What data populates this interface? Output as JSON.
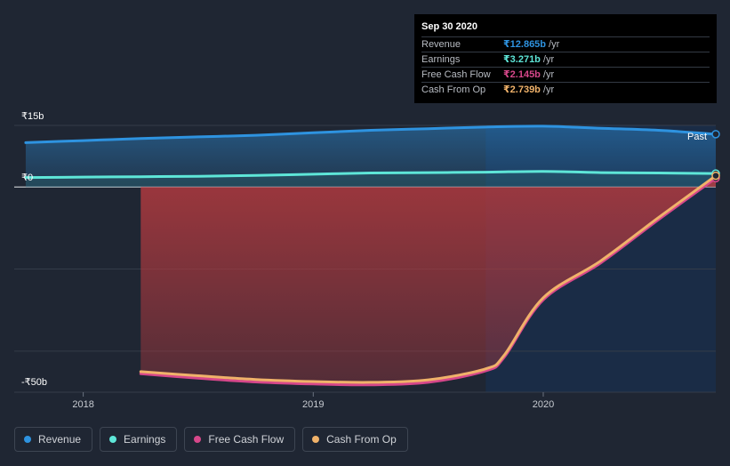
{
  "tooltip": {
    "date": "Sep 30 2020",
    "rows": [
      {
        "label": "Revenue",
        "value": "₹12.865b",
        "unit": "/yr",
        "color": "#2e93e0"
      },
      {
        "label": "Earnings",
        "value": "₹3.271b",
        "unit": "/yr",
        "color": "#5ee6d8"
      },
      {
        "label": "Free Cash Flow",
        "value": "₹2.145b",
        "unit": "/yr",
        "color": "#d6478a"
      },
      {
        "label": "Cash From Op",
        "value": "₹2.739b",
        "unit": "/yr",
        "color": "#f0b26a"
      }
    ]
  },
  "past_label": "Past",
  "legend": [
    {
      "label": "Revenue",
      "color": "#2e93e0"
    },
    {
      "label": "Earnings",
      "color": "#5ee6d8"
    },
    {
      "label": "Free Cash Flow",
      "color": "#d6478a"
    },
    {
      "label": "Cash From Op",
      "color": "#f0b26a"
    }
  ],
  "chart_data": {
    "type": "line",
    "ylim": [
      -50,
      15
    ],
    "xlim": [
      2017.7,
      2020.75
    ],
    "y_ticks": [
      {
        "value": 15,
        "label": "₹15b"
      },
      {
        "value": 0,
        "label": "₹0"
      },
      {
        "value": -50,
        "label": "-₹50b"
      }
    ],
    "x_ticks": [
      {
        "value": 2018,
        "label": "2018"
      },
      {
        "value": 2019,
        "label": "2019"
      },
      {
        "value": 2020,
        "label": "2020"
      }
    ],
    "highlight_from": 2019.75,
    "series": [
      {
        "name": "Revenue",
        "color": "#2e93e0",
        "x": [
          2017.75,
          2018.0,
          2018.25,
          2018.5,
          2018.75,
          2019.0,
          2019.25,
          2019.5,
          2019.75,
          2020.0,
          2020.25,
          2020.5,
          2020.75
        ],
        "y": [
          10.8,
          11.3,
          11.8,
          12.2,
          12.6,
          13.2,
          13.8,
          14.2,
          14.6,
          14.8,
          14.3,
          13.8,
          12.865
        ]
      },
      {
        "name": "Earnings",
        "color": "#5ee6d8",
        "x": [
          2017.75,
          2018.0,
          2018.25,
          2018.5,
          2018.75,
          2019.0,
          2019.25,
          2019.5,
          2019.75,
          2020.0,
          2020.25,
          2020.5,
          2020.75
        ],
        "y": [
          2.3,
          2.4,
          2.5,
          2.6,
          2.8,
          3.1,
          3.4,
          3.5,
          3.6,
          3.8,
          3.5,
          3.4,
          3.271
        ]
      },
      {
        "name": "Free Cash Flow",
        "color": "#d6478a",
        "x": [
          2018.25,
          2018.5,
          2018.75,
          2019.0,
          2019.25,
          2019.5,
          2019.75,
          2019.83,
          2020.0,
          2020.25,
          2020.5,
          2020.75
        ],
        "y": [
          -45.5,
          -46.6,
          -47.5,
          -48.0,
          -48.2,
          -47.6,
          -44.8,
          -41.5,
          -27.5,
          -18.5,
          -8.0,
          2.145
        ]
      },
      {
        "name": "Cash From Op",
        "color": "#f0b26a",
        "x": [
          2018.25,
          2018.5,
          2018.75,
          2019.0,
          2019.25,
          2019.5,
          2019.75,
          2019.83,
          2020.0,
          2020.25,
          2020.5,
          2020.75
        ],
        "y": [
          -45.0,
          -46.0,
          -46.9,
          -47.4,
          -47.6,
          -47.0,
          -44.3,
          -41.0,
          -27.0,
          -18.0,
          -7.5,
          2.739
        ]
      }
    ]
  }
}
